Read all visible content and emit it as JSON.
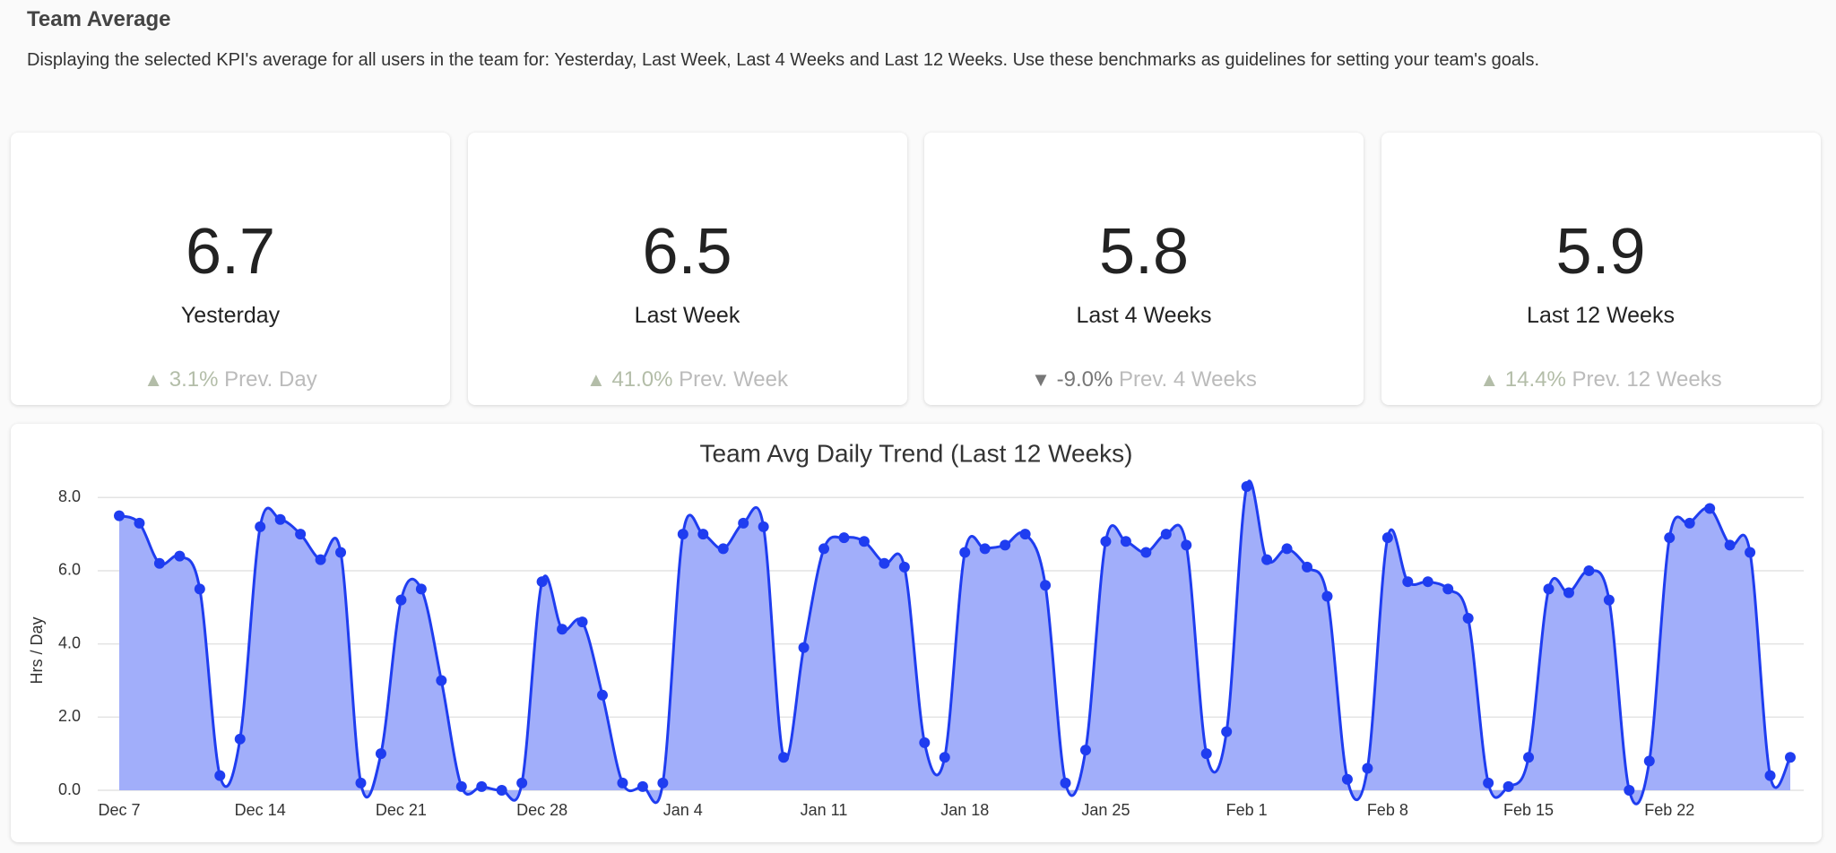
{
  "header": {
    "title": "Team Average",
    "description": "Displaying the selected KPI's average for all users in the team for: Yesterday, Last Week, Last 4 Weeks and Last 12 Weeks. Use these benchmarks as guidelines for setting your team's goals."
  },
  "cards": [
    {
      "value": "6.7",
      "label": "Yesterday",
      "arrow": "▲",
      "change": "3.1%",
      "compare": "Prev. Day"
    },
    {
      "value": "6.5",
      "label": "Last Week",
      "arrow": "▲",
      "change": "41.0%",
      "compare": "Prev. Week"
    },
    {
      "value": "5.8",
      "label": "Last 4 Weeks",
      "arrow": "▼",
      "change": "-9.0%",
      "compare": "Prev. 4 Weeks"
    },
    {
      "value": "5.9",
      "label": "Last 12 Weeks",
      "arrow": "▲",
      "change": "14.4%",
      "compare": "Prev. 12 Weeks"
    }
  ],
  "chart_data": {
    "type": "area",
    "title": "Team Avg Daily Trend (Last 12 Weeks)",
    "y_label": "Hrs / Day",
    "color": "#1f3df0",
    "fill": "#a1aefa",
    "grid": true,
    "categories": [
      "Dec 7",
      null,
      null,
      null,
      null,
      null,
      null,
      "Dec 14",
      null,
      null,
      null,
      null,
      null,
      null,
      "Dec 21",
      null,
      null,
      null,
      null,
      null,
      null,
      "Dec 28",
      null,
      null,
      null,
      null,
      null,
      null,
      "Jan 4",
      null,
      null,
      null,
      null,
      null,
      null,
      "Jan 11",
      null,
      null,
      null,
      null,
      null,
      null,
      "Jan 18",
      null,
      null,
      null,
      null,
      null,
      null,
      "Jan 25",
      null,
      null,
      null,
      null,
      null,
      null,
      "Feb 1",
      null,
      null,
      null,
      null,
      null,
      null,
      "Feb 8",
      null,
      null,
      null,
      null,
      null,
      null,
      "Feb 15",
      null,
      null,
      null,
      null,
      null,
      null,
      "Feb 22",
      null,
      null,
      null,
      null,
      null,
      null
    ],
    "values": [
      7.5,
      7.3,
      6.2,
      6.4,
      5.5,
      0.4,
      1.4,
      7.2,
      7.4,
      7.0,
      6.3,
      6.5,
      0.2,
      1.0,
      5.2,
      5.5,
      3.0,
      0.1,
      0.1,
      0.0,
      0.2,
      5.7,
      4.4,
      4.6,
      2.6,
      0.2,
      0.1,
      0.2,
      7.0,
      7.0,
      6.6,
      7.3,
      7.2,
      0.9,
      3.9,
      6.6,
      6.9,
      6.8,
      6.2,
      6.1,
      1.3,
      0.9,
      6.5,
      6.6,
      6.7,
      7.0,
      5.6,
      0.2,
      1.1,
      6.8,
      6.8,
      6.5,
      7.0,
      6.7,
      1.0,
      1.6,
      8.3,
      6.3,
      6.6,
      6.1,
      5.3,
      0.3,
      0.6,
      6.9,
      5.7,
      5.7,
      5.5,
      4.7,
      0.2,
      0.1,
      0.9,
      5.5,
      5.4,
      6.0,
      5.2,
      0.0,
      0.8,
      6.9,
      7.3,
      7.7,
      6.7,
      6.5,
      0.4,
      0.9
    ],
    "ylim": [
      0,
      8.3
    ],
    "yticks": [
      {
        "value": 0,
        "label": "0.0"
      },
      {
        "value": 2,
        "label": "2.0"
      },
      {
        "value": 4,
        "label": "4.0"
      },
      {
        "value": 6,
        "label": "6.0"
      },
      {
        "value": 8,
        "label": "8.0"
      }
    ]
  }
}
